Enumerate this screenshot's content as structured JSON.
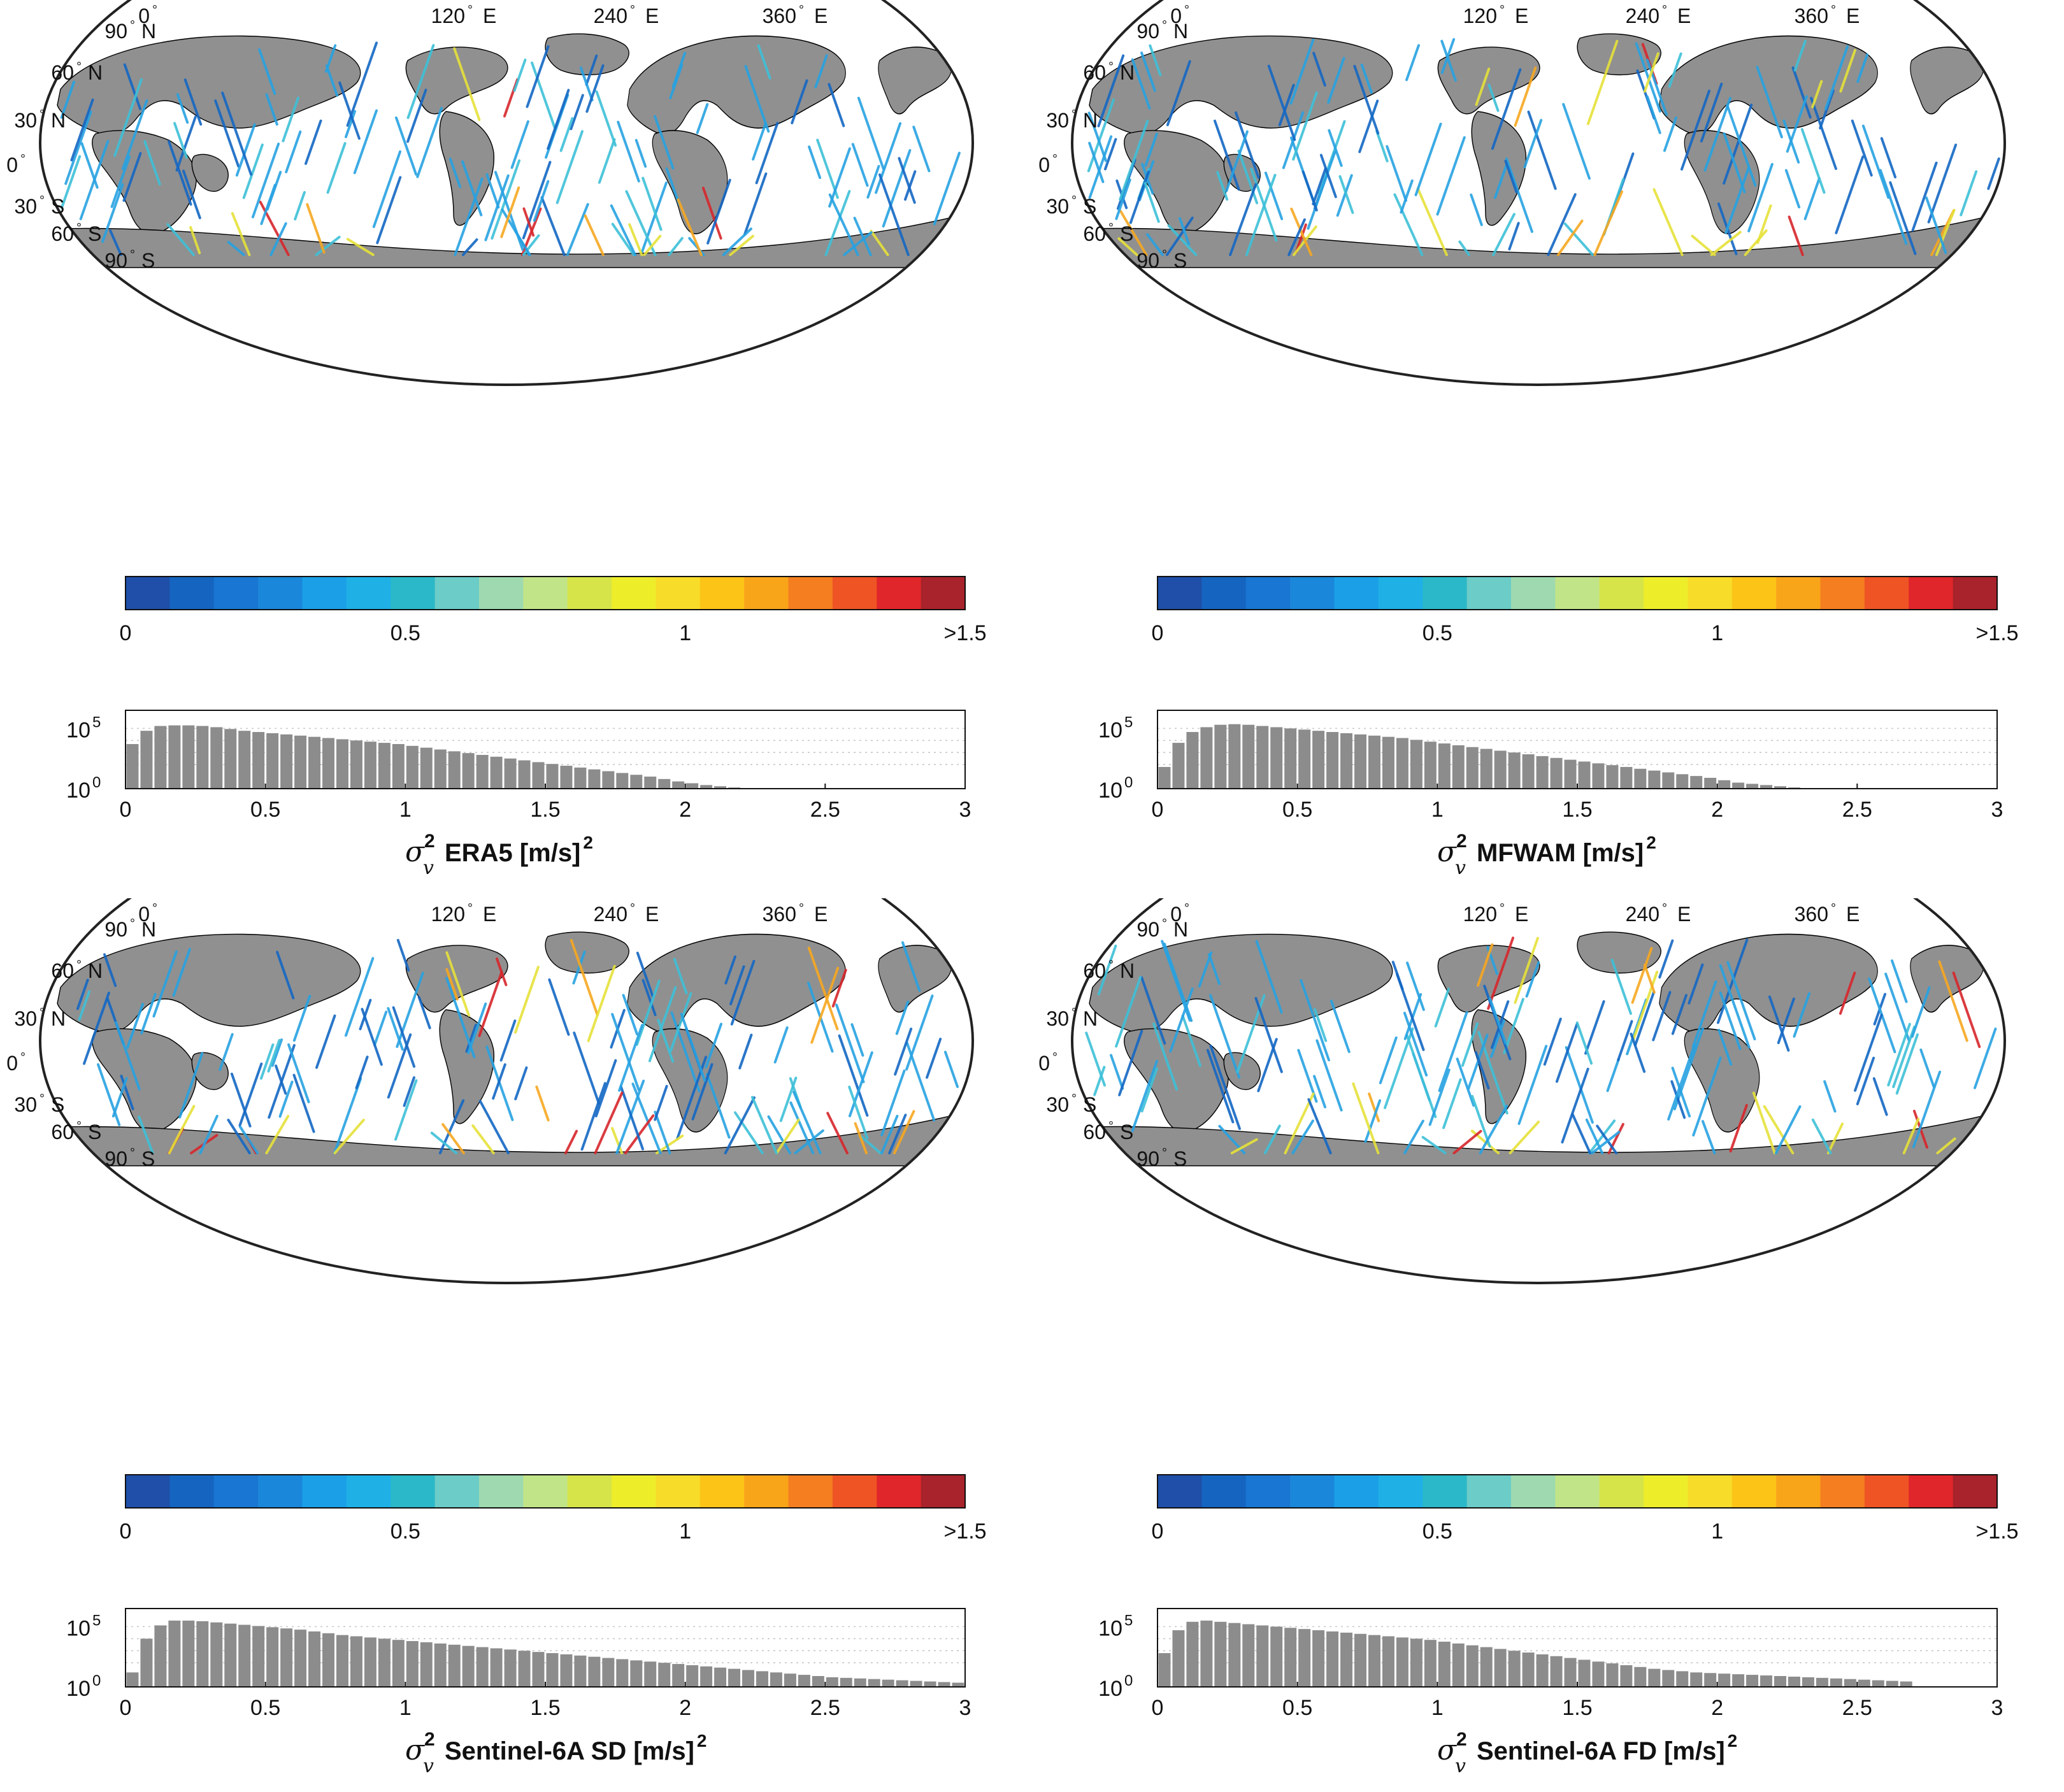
{
  "map_axes": {
    "lon_labels": [
      "0",
      "120",
      "240",
      "360"
    ],
    "lon_suffix": [
      "",
      "E",
      "E",
      "E"
    ],
    "lat_labels": [
      "90",
      "60",
      "30",
      "0",
      "30",
      "60",
      "90"
    ],
    "lat_suffix": [
      "N",
      "N",
      "N",
      "",
      "S",
      "S",
      "S"
    ],
    "degree": "°"
  },
  "colorbar": {
    "tick_labels": [
      "0",
      "0.5",
      "1",
      ">1.5"
    ],
    "tick_values": [
      0,
      0.5,
      1,
      1.5
    ],
    "range": [
      0,
      1.5
    ],
    "colors": [
      "#1f4fa8",
      "#1565c0",
      "#1976d2",
      "#1a87da",
      "#1ba0e8",
      "#1fb0e6",
      "#2bb8c8",
      "#6cccc8",
      "#9ed9b0",
      "#c1e488",
      "#d6e44a",
      "#eded2a",
      "#f8dc2a",
      "#fbc417",
      "#f9a51a",
      "#f47e20",
      "#ee5424",
      "#e0262a",
      "#a8232b"
    ]
  },
  "track_colors": {
    "deep_blue": "#1468c4",
    "light_blue": "#27a2e2",
    "cyan": "#3ec0d8",
    "yellow": "#e6e23a",
    "orange": "#f7a821",
    "red": "#d7262c",
    "land": "#909090"
  },
  "panels": [
    {
      "chart_data": {
        "type": "bar",
        "xlabel_symbol": "σ",
        "xlabel_sup": "2",
        "xlabel_sub": "v",
        "xlabel_text": "ERA5 [m/s]",
        "xlabel_unit_sup": "2",
        "xlim": [
          0,
          3
        ],
        "x_ticks": [
          "0",
          "0.5",
          "1",
          "1.5",
          "2",
          "2.5",
          "3"
        ],
        "y_scale": "log",
        "y_ticks": [
          {
            "base": "10",
            "exp": "5",
            "value": 100000
          },
          {
            "base": "10",
            "exp": "0",
            "value": 1
          }
        ],
        "ylim_log10": [
          0,
          6.5
        ],
        "bin_width": 0.05,
        "log10_counts": [
          3.7,
          4.8,
          5.2,
          5.25,
          5.25,
          5.2,
          5.1,
          4.95,
          4.8,
          4.7,
          4.6,
          4.5,
          4.4,
          4.3,
          4.2,
          4.1,
          4.0,
          3.9,
          3.8,
          3.7,
          3.55,
          3.4,
          3.25,
          3.1,
          2.95,
          2.8,
          2.65,
          2.5,
          2.35,
          2.2,
          2.05,
          1.9,
          1.75,
          1.6,
          1.45,
          1.3,
          1.15,
          1.0,
          0.8,
          0.6,
          0.45,
          0.3,
          0.2,
          0.1,
          0.05,
          0,
          0,
          0,
          0,
          0,
          0,
          0,
          0,
          0,
          0,
          0,
          0,
          0,
          0,
          0
        ]
      },
      "map_seed": 11
    },
    {
      "chart_data": {
        "type": "bar",
        "xlabel_symbol": "σ",
        "xlabel_sup": "2",
        "xlabel_sub": "v",
        "xlabel_text": "MFWAM [m/s]",
        "xlabel_unit_sup": "2",
        "xlim": [
          0,
          3
        ],
        "x_ticks": [
          "0",
          "0.5",
          "1",
          "1.5",
          "2",
          "2.5",
          "3"
        ],
        "y_scale": "log",
        "y_ticks": [
          {
            "base": "10",
            "exp": "5",
            "value": 100000
          },
          {
            "base": "10",
            "exp": "0",
            "value": 1
          }
        ],
        "ylim_log10": [
          0,
          6.5
        ],
        "bin_width": 0.05,
        "log10_counts": [
          1.8,
          3.8,
          4.7,
          5.1,
          5.3,
          5.35,
          5.3,
          5.2,
          5.1,
          5.0,
          4.9,
          4.8,
          4.7,
          4.6,
          4.5,
          4.4,
          4.3,
          4.2,
          4.05,
          3.9,
          3.75,
          3.6,
          3.45,
          3.3,
          3.15,
          3.0,
          2.85,
          2.7,
          2.55,
          2.4,
          2.25,
          2.1,
          1.95,
          1.8,
          1.65,
          1.5,
          1.35,
          1.2,
          1.05,
          0.9,
          0.7,
          0.5,
          0.4,
          0.3,
          0.2,
          0.1,
          0.05,
          0.02,
          0,
          0,
          0,
          0,
          0,
          0,
          0,
          0,
          0,
          0,
          0,
          0
        ]
      },
      "map_seed": 23
    },
    {
      "chart_data": {
        "type": "bar",
        "xlabel_symbol": "σ",
        "xlabel_sup": "2",
        "xlabel_sub": "v",
        "xlabel_text": "Sentinel-6A SD [m/s]",
        "xlabel_unit_sup": "2",
        "xlim": [
          0,
          3
        ],
        "x_ticks": [
          "0",
          "0.5",
          "1",
          "1.5",
          "2",
          "2.5",
          "3"
        ],
        "y_scale": "log",
        "y_ticks": [
          {
            "base": "10",
            "exp": "5",
            "value": 100000
          },
          {
            "base": "10",
            "exp": "0",
            "value": 1
          }
        ],
        "ylim_log10": [
          0,
          6.5
        ],
        "bin_width": 0.05,
        "log10_counts": [
          1.2,
          4.0,
          5.1,
          5.5,
          5.5,
          5.45,
          5.35,
          5.25,
          5.15,
          5.05,
          4.95,
          4.85,
          4.75,
          4.6,
          4.45,
          4.3,
          4.2,
          4.1,
          4.0,
          3.9,
          3.8,
          3.7,
          3.6,
          3.5,
          3.4,
          3.3,
          3.2,
          3.1,
          3.0,
          2.9,
          2.8,
          2.7,
          2.6,
          2.5,
          2.4,
          2.3,
          2.2,
          2.1,
          2.0,
          1.9,
          1.8,
          1.7,
          1.6,
          1.5,
          1.4,
          1.3,
          1.2,
          1.1,
          1.0,
          0.9,
          0.8,
          0.75,
          0.7,
          0.65,
          0.6,
          0.55,
          0.5,
          0.45,
          0.4,
          0.35
        ]
      },
      "map_seed": 37
    },
    {
      "chart_data": {
        "type": "bar",
        "xlabel_symbol": "σ",
        "xlabel_sup": "2",
        "xlabel_sub": "v",
        "xlabel_text": "Sentinel-6A FD [m/s]",
        "xlabel_unit_sup": "2",
        "xlim": [
          0,
          3
        ],
        "x_ticks": [
          "0",
          "0.5",
          "1",
          "1.5",
          "2",
          "2.5",
          "3"
        ],
        "y_scale": "log",
        "y_ticks": [
          {
            "base": "10",
            "exp": "5",
            "value": 100000
          },
          {
            "base": "10",
            "exp": "0",
            "value": 1
          }
        ],
        "ylim_log10": [
          0,
          6.5
        ],
        "bin_width": 0.05,
        "log10_counts": [
          2.8,
          4.7,
          5.4,
          5.5,
          5.4,
          5.3,
          5.2,
          5.1,
          5.0,
          4.9,
          4.8,
          4.7,
          4.6,
          4.5,
          4.4,
          4.3,
          4.2,
          4.1,
          4.0,
          3.9,
          3.75,
          3.6,
          3.45,
          3.3,
          3.15,
          3.0,
          2.85,
          2.7,
          2.55,
          2.4,
          2.25,
          2.1,
          1.95,
          1.8,
          1.65,
          1.5,
          1.4,
          1.3,
          1.2,
          1.15,
          1.1,
          1.05,
          1.0,
          0.95,
          0.9,
          0.85,
          0.8,
          0.75,
          0.7,
          0.65,
          0.6,
          0.55,
          0.5,
          0.45,
          0,
          0,
          0,
          0,
          0,
          0
        ]
      },
      "map_seed": 51
    }
  ]
}
